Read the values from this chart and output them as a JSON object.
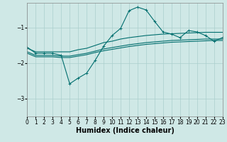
{
  "xlabel": "Humidex (Indice chaleur)",
  "background_color": "#cfe8e6",
  "grid_color": "#aacfcd",
  "line_color": "#006e6e",
  "x_values": [
    0,
    1,
    2,
    3,
    4,
    5,
    6,
    7,
    8,
    9,
    10,
    11,
    12,
    13,
    14,
    15,
    16,
    17,
    18,
    19,
    20,
    21,
    22,
    23
  ],
  "line_peak": [
    -1.55,
    -1.72,
    -1.72,
    -1.72,
    -1.78,
    -2.58,
    -2.42,
    -2.28,
    -1.92,
    -1.52,
    -1.22,
    -1.02,
    -0.52,
    -0.42,
    -0.5,
    -0.82,
    -1.12,
    -1.18,
    -1.28,
    -1.08,
    -1.12,
    -1.22,
    -1.38,
    -1.28
  ],
  "line_upper": [
    -1.58,
    -1.68,
    -1.68,
    -1.68,
    -1.68,
    -1.68,
    -1.62,
    -1.58,
    -1.5,
    -1.42,
    -1.38,
    -1.32,
    -1.28,
    -1.25,
    -1.22,
    -1.2,
    -1.18,
    -1.17,
    -1.16,
    -1.15,
    -1.14,
    -1.13,
    -1.13,
    -1.13
  ],
  "line_lower": [
    -1.68,
    -1.78,
    -1.78,
    -1.78,
    -1.8,
    -1.8,
    -1.76,
    -1.72,
    -1.66,
    -1.6,
    -1.56,
    -1.52,
    -1.48,
    -1.45,
    -1.42,
    -1.4,
    -1.38,
    -1.36,
    -1.35,
    -1.34,
    -1.33,
    -1.32,
    -1.32,
    -1.32
  ],
  "line_bottom": [
    -1.72,
    -1.82,
    -1.82,
    -1.82,
    -1.84,
    -1.84,
    -1.8,
    -1.76,
    -1.7,
    -1.65,
    -1.61,
    -1.57,
    -1.53,
    -1.5,
    -1.47,
    -1.45,
    -1.43,
    -1.41,
    -1.4,
    -1.39,
    -1.38,
    -1.37,
    -1.36,
    -1.36
  ],
  "ylim": [
    -3.5,
    -0.3
  ],
  "xlim": [
    0,
    23
  ],
  "yticks": [
    -3,
    -2,
    -1
  ],
  "xticks": [
    0,
    1,
    2,
    3,
    4,
    5,
    6,
    7,
    8,
    9,
    10,
    11,
    12,
    13,
    14,
    15,
    16,
    17,
    18,
    19,
    20,
    21,
    22,
    23
  ],
  "xlabel_fontsize": 7,
  "tick_fontsize": 5.5
}
